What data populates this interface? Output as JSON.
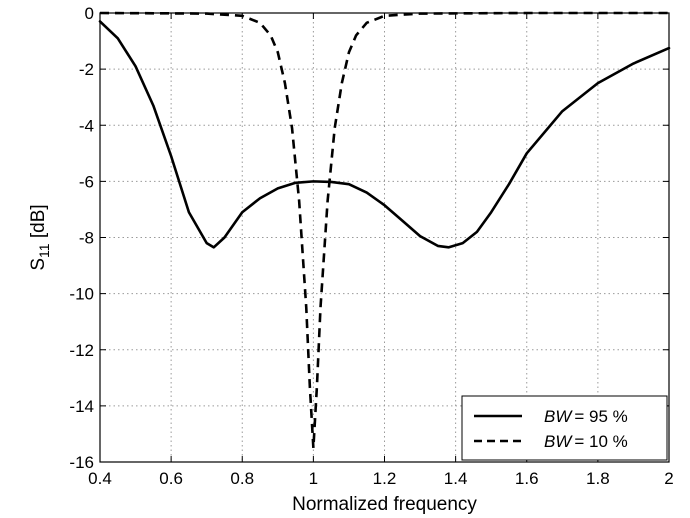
{
  "chart_data": {
    "type": "line",
    "xlabel": "Normalized frequency",
    "ylabel": {
      "base": "S",
      "sub": "11",
      "unit": " [dB]"
    },
    "xlim": [
      0.4,
      2.0
    ],
    "ylim": [
      -16,
      0
    ],
    "xticks": [
      0.4,
      0.6,
      0.8,
      1,
      1.2,
      1.4,
      1.6,
      1.8,
      2
    ],
    "yticks": [
      0,
      -2,
      -4,
      -6,
      -8,
      -10,
      -12,
      -14,
      -16
    ],
    "grid": true,
    "legend_position": "bottom-right",
    "series": [
      {
        "name": "BW = 95 %",
        "label_var": "BW",
        "label_value": "= 95 %",
        "style": "solid",
        "color": "#000000",
        "x": [
          0.4,
          0.45,
          0.5,
          0.55,
          0.6,
          0.65,
          0.7,
          0.72,
          0.75,
          0.8,
          0.85,
          0.9,
          0.95,
          1.0,
          1.05,
          1.1,
          1.15,
          1.2,
          1.25,
          1.3,
          1.35,
          1.38,
          1.42,
          1.46,
          1.5,
          1.55,
          1.6,
          1.7,
          1.8,
          1.9,
          2.0
        ],
        "y": [
          -0.3,
          -0.9,
          -1.9,
          -3.3,
          -5.1,
          -7.1,
          -8.2,
          -8.35,
          -8.0,
          -7.1,
          -6.6,
          -6.25,
          -6.05,
          -6.0,
          -6.02,
          -6.1,
          -6.4,
          -6.85,
          -7.4,
          -7.95,
          -8.3,
          -8.35,
          -8.2,
          -7.8,
          -7.1,
          -6.1,
          -5.0,
          -3.5,
          -2.5,
          -1.8,
          -1.25
        ]
      },
      {
        "name": "BW = 10 %",
        "label_var": "BW",
        "label_value": "= 10 %",
        "style": "dashed",
        "color": "#000000",
        "x": [
          0.4,
          0.7,
          0.8,
          0.85,
          0.88,
          0.9,
          0.92,
          0.94,
          0.96,
          0.98,
          0.99,
          1.0,
          1.01,
          1.02,
          1.04,
          1.06,
          1.08,
          1.1,
          1.12,
          1.15,
          1.2,
          1.3,
          1.6,
          2.0
        ],
        "y": [
          0,
          -0.02,
          -0.1,
          -0.35,
          -0.8,
          -1.4,
          -2.5,
          -4.1,
          -6.7,
          -10.5,
          -13.3,
          -15.5,
          -13.3,
          -10.5,
          -6.7,
          -4.1,
          -2.5,
          -1.4,
          -0.8,
          -0.35,
          -0.1,
          -0.02,
          0,
          0
        ]
      }
    ]
  }
}
